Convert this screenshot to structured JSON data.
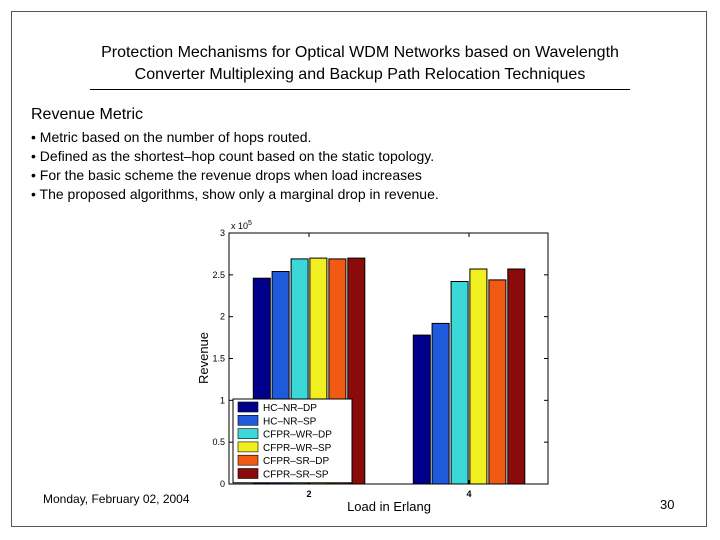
{
  "slide": {
    "title_line1": "Protection Mechanisms for Optical WDM Networks based on Wavelength",
    "title_line2": "Converter Multiplexing and Backup Path Relocation Techniques",
    "subtitle": "Revenue Metric",
    "bullets": [
      "• Metric based on the number of hops routed.",
      "• Defined as the shortest–hop count based on the static topology.",
      "• For the basic scheme the revenue drops when load increases",
      "• The proposed algorithms, show only a marginal drop in revenue."
    ],
    "date": "Monday, February 02, 2004",
    "page_number": "30"
  },
  "chart_data": {
    "type": "bar",
    "title": "",
    "xlabel": "Load in Erlang",
    "ylabel": "Revenue",
    "y_scale_label": "x 10",
    "y_scale_exponent": "5",
    "categories": [
      "2",
      "4"
    ],
    "ylim": [
      0,
      3
    ],
    "yticks": [
      "0",
      "0.5",
      "1",
      "1.5",
      "2",
      "2.5",
      "3"
    ],
    "grid": false,
    "legend_position": "lower-left",
    "series": [
      {
        "name": "HC–NR–DP",
        "color": "#00008b",
        "values": [
          2.46,
          1.78
        ]
      },
      {
        "name": "HC–NR–SP",
        "color": "#1e5adc",
        "values": [
          2.54,
          1.92
        ]
      },
      {
        "name": "CFPR–WR–DP",
        "color": "#3cd8d8",
        "values": [
          2.69,
          2.42
        ]
      },
      {
        "name": "CFPR–WR–SP",
        "color": "#f0f020",
        "values": [
          2.7,
          2.57
        ]
      },
      {
        "name": "CFPR–SR–DP",
        "color": "#f05a14",
        "values": [
          2.69,
          2.44
        ]
      },
      {
        "name": "CFPR–SR–SP",
        "color": "#8b0a0a",
        "values": [
          2.7,
          2.57
        ]
      }
    ]
  }
}
